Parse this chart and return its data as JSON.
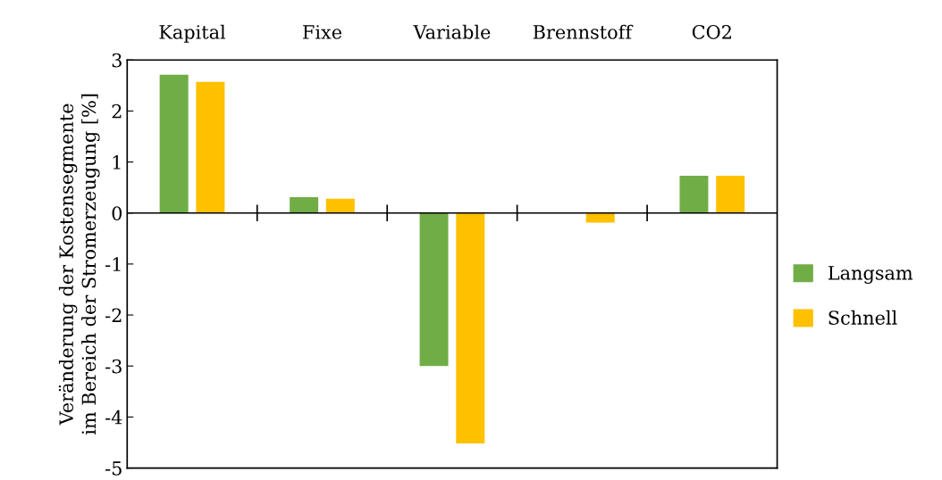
{
  "chart_data": {
    "type": "bar",
    "ylabel": "Veränderung der Kostensegmente\nim Bereich der Stromerzeugung [%]",
    "categories": [
      "Kapital",
      "Fixe",
      "Variable",
      "Brennstoff",
      "CO2"
    ],
    "series": [
      {
        "name": "Langsam",
        "color": "#70ad47",
        "values": [
          2.71,
          0.31,
          -3.0,
          0,
          0.73
        ]
      },
      {
        "name": "Schnell",
        "color": "#ffc000",
        "values": [
          2.57,
          0.28,
          -4.52,
          -0.19,
          0.73
        ]
      }
    ],
    "ylim": [
      -5,
      3
    ],
    "yticks": [
      {
        "value": -5,
        "label": "-5"
      },
      {
        "value": -4,
        "label": "-4"
      },
      {
        "value": -3,
        "label": "-3"
      },
      {
        "value": -2,
        "label": "-2"
      },
      {
        "value": -1,
        "label": "-1"
      },
      0,
      1,
      2,
      3
    ],
    "ref_lines": [
      {
        "axis": "y",
        "value": 0,
        "color": "#000000"
      }
    ],
    "grid": false,
    "legend": "right"
  }
}
